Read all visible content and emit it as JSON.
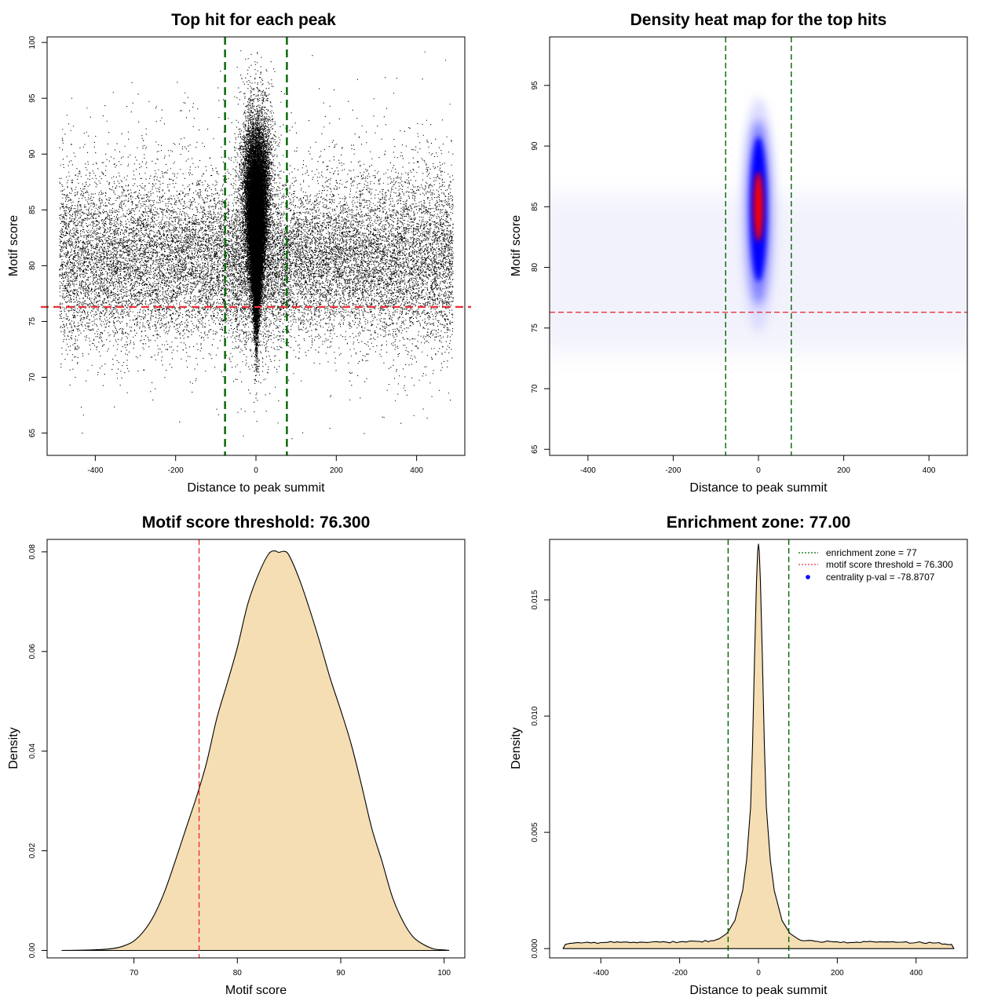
{
  "chart_data": [
    {
      "id": "scatter",
      "type": "scatter",
      "title": "Top hit for each peak",
      "xlabel": "Distance to peak summit",
      "ylabel": "Motif score",
      "xlim": [
        -520,
        520
      ],
      "ylim": [
        63,
        100.5
      ],
      "xticks": [
        -400,
        -200,
        0,
        200,
        400
      ],
      "yticks": [
        65,
        70,
        75,
        80,
        85,
        90,
        95,
        100
      ],
      "vlines": [
        -77,
        77
      ],
      "hline": 76.3,
      "colors": {
        "points": "#000000",
        "vline": "#006400",
        "hline": "#e8333a"
      }
    },
    {
      "id": "heatmap",
      "type": "heatmap",
      "title": "Density heat map for the top hits",
      "xlabel": "Distance to peak summit",
      "ylabel": "Motif score",
      "xlim": [
        -490,
        490
      ],
      "ylim": [
        64.5,
        99
      ],
      "xticks": [
        -400,
        -200,
        0,
        200,
        400
      ],
      "yticks": [
        65,
        70,
        75,
        80,
        85,
        90,
        95
      ],
      "vlines": [
        -77,
        77
      ],
      "hline": 76.3,
      "hotspot": {
        "x": 0,
        "y": 85
      },
      "colors": {
        "low": "#ffffff",
        "mid": "#0000ff",
        "high": "#ff0000",
        "vline": "#006400",
        "hline": "#e8333a"
      }
    },
    {
      "id": "score_density",
      "type": "area",
      "title": "Motif score threshold: 76.300",
      "xlabel": "Motif score",
      "ylabel": "Density",
      "xlim": [
        61.6,
        102
      ],
      "ylim": [
        -0.0015,
        0.0825
      ],
      "xticks": [
        70,
        80,
        90,
        100
      ],
      "yticks": [
        0.0,
        0.02,
        0.04,
        0.06,
        0.08
      ],
      "ytick_labels": [
        "0.00",
        "0.02",
        "0.04",
        "0.06",
        "0.08"
      ],
      "x": [
        63,
        66,
        68,
        69,
        70,
        71,
        72,
        73,
        74,
        75,
        76,
        77,
        78,
        79,
        80,
        81,
        82,
        83,
        83.6,
        84,
        84.5,
        85,
        86,
        87,
        88,
        89,
        90,
        91,
        92,
        93,
        94,
        95,
        96,
        97,
        98,
        99,
        100,
        100.5
      ],
      "y": [
        0,
        0.0001,
        0.0004,
        0.0009,
        0.0019,
        0.004,
        0.0073,
        0.012,
        0.018,
        0.0243,
        0.0305,
        0.0375,
        0.0465,
        0.0535,
        0.0608,
        0.0695,
        0.0753,
        0.0795,
        0.0802,
        0.0799,
        0.0801,
        0.0793,
        0.0745,
        0.0684,
        0.0617,
        0.0545,
        0.0482,
        0.0415,
        0.0333,
        0.0245,
        0.0178,
        0.0107,
        0.0059,
        0.0027,
        0.0012,
        0.0003,
        0.0001,
        0
      ],
      "vline": 76.3,
      "colors": {
        "fill": "#f5deb3",
        "line": "#000000",
        "vline": "#e8333a"
      }
    },
    {
      "id": "distance_density",
      "type": "area",
      "title": "Enrichment zone: 77.00",
      "xlabel": "Distance to peak summit",
      "ylabel": "Density",
      "xlim": [
        -530,
        530
      ],
      "ylim": [
        -0.0004,
        0.0176
      ],
      "xticks": [
        -400,
        -200,
        0,
        200,
        400
      ],
      "yticks": [
        0.0,
        0.005,
        0.01,
        0.015
      ],
      "ytick_labels": [
        "0.000",
        "0.005",
        "0.010",
        "0.015"
      ],
      "x": [
        -496,
        -490,
        -480,
        -450,
        -400,
        -350,
        -300,
        -250,
        -200,
        -150,
        -120,
        -100,
        -80,
        -60,
        -40,
        -30,
        -20,
        -15,
        -10,
        -5,
        -2,
        0,
        2,
        5,
        10,
        15,
        20,
        30,
        40,
        60,
        80,
        100,
        120,
        150,
        200,
        250,
        300,
        350,
        400,
        450,
        490,
        496
      ],
      "y": [
        0,
        0.00018,
        0.00022,
        0.00024,
        0.00026,
        0.00027,
        0.00028,
        0.00028,
        0.00029,
        0.00031,
        0.00034,
        0.00042,
        0.00065,
        0.0012,
        0.0025,
        0.0038,
        0.0061,
        0.0088,
        0.0125,
        0.0158,
        0.0171,
        0.0174,
        0.0171,
        0.0158,
        0.0125,
        0.0088,
        0.0061,
        0.0038,
        0.0025,
        0.0012,
        0.00065,
        0.00042,
        0.00034,
        0.00031,
        0.00029,
        0.00028,
        0.00028,
        0.00027,
        0.00026,
        0.00024,
        0.00018,
        0
      ],
      "vlines": [
        -77,
        77
      ],
      "legend": [
        {
          "label": "enrichment zone = 77",
          "style": "dotted",
          "color": "#006400"
        },
        {
          "label": "motif score threshold = 76.300",
          "style": "dotted",
          "color": "#e8333a"
        },
        {
          "label": "centrality p-val = -78.8707",
          "style": "dot",
          "color": "#0000ff"
        }
      ],
      "colors": {
        "fill": "#f5deb3",
        "line": "#000000",
        "vline": "#006400"
      }
    }
  ]
}
